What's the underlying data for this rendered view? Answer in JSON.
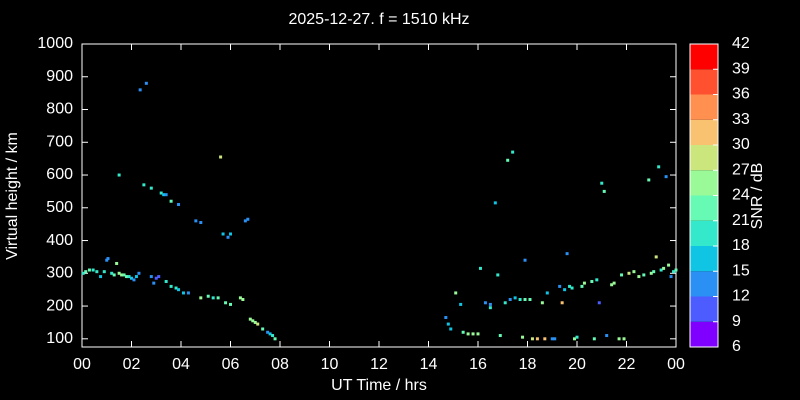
{
  "chart_data": {
    "type": "scatter",
    "title": "2025-12-27. f = 1510 kHz",
    "xlabel": "UT Time / hrs",
    "ylabel": "Virtual height / km",
    "xlim": [
      0,
      24
    ],
    "ylim": [
      75,
      1000
    ],
    "xticks": [
      {
        "value": 0,
        "label": "00"
      },
      {
        "value": 2,
        "label": "02"
      },
      {
        "value": 4,
        "label": "04"
      },
      {
        "value": 6,
        "label": "06"
      },
      {
        "value": 8,
        "label": "08"
      },
      10,
      12,
      14,
      16,
      18,
      20,
      22,
      {
        "value": 24,
        "label": "00"
      }
    ],
    "yticks": [
      100,
      200,
      300,
      400,
      500,
      600,
      700,
      800,
      900,
      1000
    ],
    "x": [
      0.05,
      0.15,
      0.3,
      0.45,
      0.6,
      0.75,
      0.9,
      1.0,
      1.05,
      1.2,
      1.3,
      1.4,
      1.5,
      1.6,
      1.7,
      1.8,
      1.9,
      2.0,
      2.1,
      2.2,
      2.3,
      2.35,
      2.6,
      2.5,
      2.8,
      1.5,
      2.8,
      2.9,
      3.0,
      3.1,
      3.2,
      3.3,
      3.4,
      3.6,
      3.9,
      3.4,
      3.6,
      3.8,
      3.9,
      4.1,
      4.3,
      4.6,
      4.8,
      4.8,
      5.1,
      5.3,
      5.5,
      5.6,
      5.7,
      5.9,
      6.0,
      5.8,
      6.0,
      6.4,
      6.5,
      6.6,
      6.7,
      6.8,
      6.9,
      7.0,
      7.1,
      7.3,
      7.5,
      7.6,
      7.7,
      7.8,
      14.7,
      14.8,
      14.9,
      15.1,
      15.3,
      15.4,
      15.6,
      15.8,
      16.0,
      16.1,
      16.3,
      16.5,
      16.5,
      16.7,
      16.8,
      16.9,
      17.1,
      17.2,
      17.3,
      17.4,
      17.5,
      17.7,
      17.9,
      17.9,
      17.8,
      18.1,
      18.2,
      18.4,
      18.6,
      18.7,
      18.8,
      19.0,
      19.1,
      19.3,
      19.4,
      19.5,
      19.6,
      19.7,
      19.8,
      19.9,
      20.0,
      20.2,
      20.3,
      20.6,
      20.7,
      20.8,
      20.9,
      21.0,
      21.1,
      21.2,
      21.4,
      21.5,
      21.7,
      21.8,
      21.9,
      22.1,
      22.3,
      22.5,
      22.7,
      22.9,
      23.0,
      23.1,
      23.2,
      23.3,
      23.4,
      23.5,
      23.6,
      23.7,
      23.8,
      23.9,
      24.0
    ],
    "values": [
      300,
      305,
      310,
      310,
      305,
      290,
      305,
      340,
      345,
      300,
      295,
      330,
      300,
      295,
      295,
      290,
      290,
      285,
      280,
      290,
      300,
      860,
      880,
      570,
      560,
      600,
      290,
      270,
      285,
      290,
      545,
      540,
      540,
      520,
      510,
      275,
      260,
      255,
      250,
      240,
      240,
      460,
      455,
      225,
      230,
      225,
      225,
      655,
      420,
      410,
      420,
      210,
      205,
      225,
      220,
      460,
      465,
      160,
      155,
      150,
      145,
      130,
      120,
      115,
      110,
      100,
      165,
      145,
      130,
      240,
      205,
      120,
      115,
      115,
      115,
      315,
      210,
      195,
      205,
      515,
      295,
      110,
      210,
      645,
      220,
      670,
      225,
      220,
      340,
      220,
      105,
      220,
      100,
      100,
      210,
      100,
      240,
      100,
      100,
      260,
      210,
      250,
      360,
      260,
      255,
      100,
      105,
      260,
      270,
      275,
      100,
      280,
      210,
      575,
      550,
      110,
      265,
      270,
      100,
      295,
      100,
      300,
      305,
      290,
      295,
      585,
      300,
      305,
      350,
      625,
      310,
      315,
      595,
      325,
      290,
      305,
      310
    ],
    "snr": [
      20,
      21,
      22,
      20,
      19,
      17,
      19,
      14,
      13,
      20,
      22,
      25,
      24,
      26,
      23,
      21,
      19,
      17,
      14,
      16,
      13,
      13,
      12,
      18,
      19,
      20,
      13,
      12,
      11,
      10,
      18,
      16,
      13,
      22,
      14,
      19,
      20,
      18,
      17,
      15,
      13,
      13,
      12,
      24,
      22,
      20,
      21,
      27,
      16,
      13,
      15,
      21,
      22,
      24,
      25,
      12,
      13,
      26,
      25,
      24,
      27,
      22,
      13,
      16,
      20,
      22,
      12,
      15,
      17,
      26,
      16,
      22,
      24,
      25,
      26,
      20,
      12,
      19,
      14,
      16,
      18,
      22,
      20,
      21,
      13,
      19,
      17,
      18,
      13,
      21,
      25,
      22,
      27,
      30,
      24,
      31,
      16,
      13,
      12,
      14,
      30,
      17,
      12,
      18,
      19,
      24,
      18,
      22,
      24,
      21,
      22,
      19,
      11,
      20,
      21,
      14,
      25,
      26,
      24,
      22,
      25,
      27,
      26,
      24,
      23,
      21,
      25,
      22,
      27,
      18,
      20,
      24,
      13,
      25,
      14,
      19,
      22
    ],
    "colorbar": {
      "label": "SNR / dB",
      "ticks": [
        6,
        9,
        12,
        15,
        18,
        21,
        24,
        27,
        30,
        33,
        36,
        39,
        42
      ],
      "colors": [
        "#8000ff",
        "#4c5cff",
        "#2a90f4",
        "#10c4e4",
        "#34e8cc",
        "#66fab4",
        "#9afa98",
        "#cce67e",
        "#f8c270",
        "#ff9050",
        "#ff5030",
        "#ff0000"
      ]
    }
  }
}
